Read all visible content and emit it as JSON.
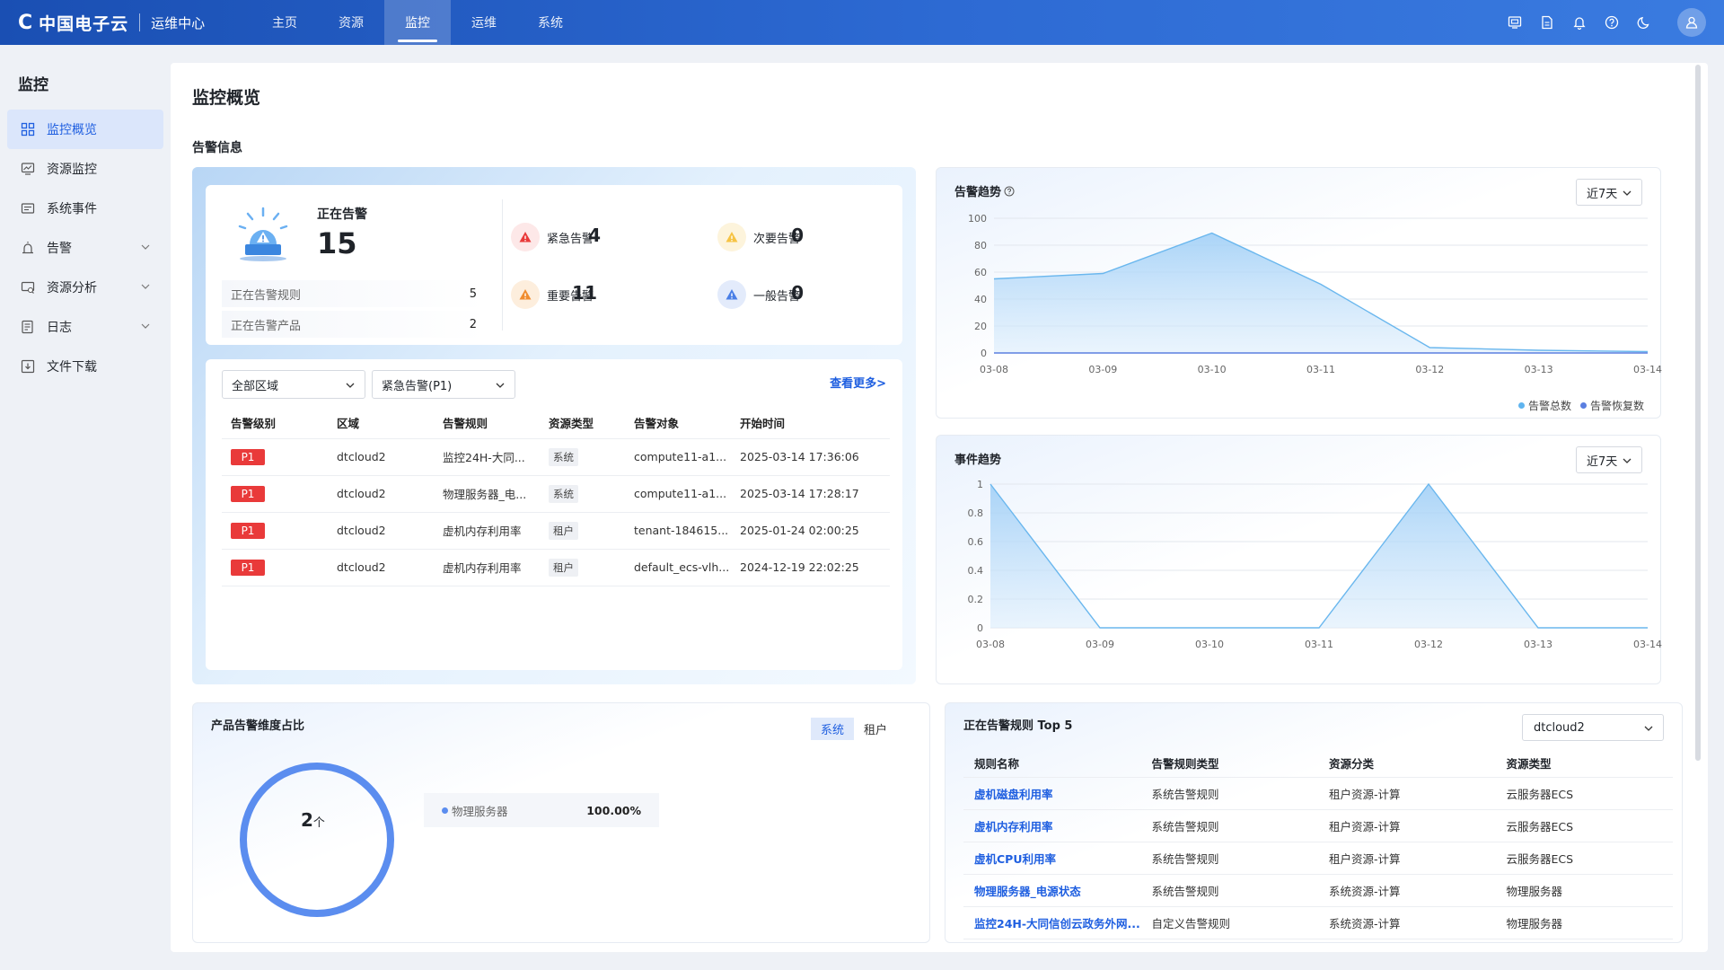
{
  "brand": {
    "logo_text": "中国电子云",
    "sub": "运维中心"
  },
  "topnav": {
    "items": [
      {
        "label": "主页"
      },
      {
        "label": "资源"
      },
      {
        "label": "监控"
      },
      {
        "label": "运维"
      },
      {
        "label": "系统"
      }
    ],
    "active": "监控"
  },
  "top_icons": [
    "screen-icon",
    "document-icon",
    "bell-icon",
    "help-icon",
    "moon-icon",
    "user-icon"
  ],
  "sidebar": {
    "title": "监控",
    "items": [
      {
        "label": "监控概览",
        "icon": "grid-icon",
        "active": true
      },
      {
        "label": "资源监控",
        "icon": "monitor-icon"
      },
      {
        "label": "系统事件",
        "icon": "event-icon"
      },
      {
        "label": "告警",
        "icon": "alarm-icon",
        "expandable": true
      },
      {
        "label": "资源分析",
        "icon": "analysis-icon",
        "expandable": true
      },
      {
        "label": "日志",
        "icon": "log-icon",
        "expandable": true
      },
      {
        "label": "文件下载",
        "icon": "download-icon"
      }
    ]
  },
  "page": {
    "title": "监控概览",
    "section_title": "告警信息"
  },
  "summary": {
    "current_label": "正在告警",
    "current_value": "15",
    "rules_label": "正在告警规则",
    "rules_value": "5",
    "products_label": "正在告警产品",
    "products_value": "2",
    "severities": [
      {
        "label": "紧急告警",
        "value": "4",
        "color": "#e93a3a"
      },
      {
        "label": "次要告警",
        "value": "0",
        "color": "#f6c343"
      },
      {
        "label": "重要告警",
        "value": "11",
        "color": "#f08c2e"
      },
      {
        "label": "一般告警",
        "value": "0",
        "color": "#4a7fe6"
      }
    ]
  },
  "alarm_list": {
    "region_select": "全部区域",
    "level_select": "紧急告警(P1)",
    "more_link": "查看更多>",
    "columns": [
      "告警级别",
      "区域",
      "告警规则",
      "资源类型",
      "告警对象",
      "开始时间"
    ],
    "rows": [
      {
        "level": "P1",
        "region": "dtcloud2",
        "rule": "监控24H-大同...",
        "type": "系统",
        "object": "compute11-a1...",
        "start": "2025-03-14 17:36:06"
      },
      {
        "level": "P1",
        "region": "dtcloud2",
        "rule": "物理服务器_电...",
        "type": "系统",
        "object": "compute11-a1...",
        "start": "2025-03-14 17:28:17"
      },
      {
        "level": "P1",
        "region": "dtcloud2",
        "rule": "虚机内存利用率",
        "type": "租户",
        "object": "tenant-184615...",
        "start": "2025-01-24 02:00:25"
      },
      {
        "level": "P1",
        "region": "dtcloud2",
        "rule": "虚机内存利用率",
        "type": "租户",
        "object": "default_ecs-vlh...",
        "start": "2024-12-19 22:02:25"
      }
    ]
  },
  "alarm_trend": {
    "title": "告警趋势",
    "range": "近7天",
    "legend": [
      "告警总数",
      "告警恢复数"
    ],
    "colors": {
      "total": "#5fb4ef",
      "recovered": "#5b7fe0"
    }
  },
  "event_trend": {
    "title": "事件趋势",
    "range": "近7天"
  },
  "chart_data": [
    {
      "type": "area",
      "title": "告警趋势",
      "x": [
        "03-08",
        "03-09",
        "03-10",
        "03-11",
        "03-12",
        "03-13",
        "03-14"
      ],
      "y_ticks": [
        0,
        20,
        40,
        60,
        80,
        100
      ],
      "ylim": [
        0,
        100
      ],
      "series": [
        {
          "name": "告警总数",
          "values": [
            55,
            59,
            89,
            51,
            4,
            2,
            1
          ]
        },
        {
          "name": "告警恢复数",
          "values": [
            0,
            0,
            0,
            0,
            0,
            0,
            0
          ]
        }
      ],
      "legend_position": "bottom-right",
      "grid": true
    },
    {
      "type": "area",
      "title": "事件趋势",
      "x": [
        "03-08",
        "03-09",
        "03-10",
        "03-11",
        "03-12",
        "03-13",
        "03-14"
      ],
      "y_ticks": [
        0,
        0.2,
        0.4,
        0.6,
        0.8,
        1
      ],
      "ylim": [
        0,
        1
      ],
      "series": [
        {
          "values": [
            1,
            0,
            0,
            0,
            1,
            0,
            0
          ]
        }
      ],
      "grid": true
    }
  ],
  "donut": {
    "title": "产品告警维度占比",
    "tabs": [
      "系统",
      "租户"
    ],
    "active_tab": "系统",
    "center_value": "2",
    "center_unit": "个",
    "legend": [
      {
        "name": "物理服务器",
        "percent": "100.00%"
      }
    ]
  },
  "top5": {
    "title": "正在告警规则 Top 5",
    "region_select": "dtcloud2",
    "columns": [
      "规则名称",
      "告警规则类型",
      "资源分类",
      "资源类型"
    ],
    "rows": [
      {
        "name": "虚机磁盘利用率",
        "rule_type": "系统告警规则",
        "category": "租户资源-计算",
        "res_type": "云服务器ECS"
      },
      {
        "name": "虚机内存利用率",
        "rule_type": "系统告警规则",
        "category": "租户资源-计算",
        "res_type": "云服务器ECS"
      },
      {
        "name": "虚机CPU利用率",
        "rule_type": "系统告警规则",
        "category": "租户资源-计算",
        "res_type": "云服务器ECS"
      },
      {
        "name": "物理服务器_电源状态",
        "rule_type": "系统告警规则",
        "category": "系统资源-计算",
        "res_type": "物理服务器"
      },
      {
        "name": "监控24H-大同信创云政务外网...",
        "rule_type": "自定义告警规则",
        "category": "系统资源-计算",
        "res_type": "物理服务器"
      }
    ]
  }
}
